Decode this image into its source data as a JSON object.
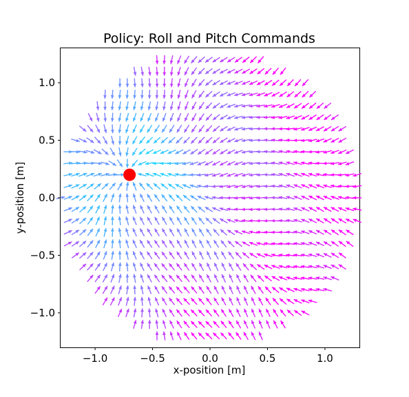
{
  "chart_data": {
    "type": "quiver",
    "title": "Policy: Roll and Pitch Commands",
    "xlabel": "x-position [m]",
    "ylabel": "y-position [m]",
    "xlim": [
      -1.3,
      1.3
    ],
    "ylim": [
      -1.3,
      1.3
    ],
    "xticks": [
      -1.0,
      -0.5,
      0.0,
      0.5,
      1.0
    ],
    "xtick_labels": [
      "−1.0",
      "−0.5",
      "0.0",
      "0.5",
      "1.0"
    ],
    "yticks": [
      -1.0,
      -0.5,
      0.0,
      0.5,
      1.0
    ],
    "ytick_labels": [
      "−1.0",
      "−0.5",
      "0.0",
      "0.5",
      "1.0"
    ],
    "grid": false,
    "colormap": "cool",
    "colormap_low": "#00ffff",
    "colormap_high": "#ff00ff",
    "target": {
      "x": -0.7,
      "y": 0.2,
      "color": "#ff0000"
    },
    "field": {
      "x_start": -1.3,
      "x_end": 1.3,
      "x_step": 0.0645,
      "y_start": -1.3,
      "y_end": 1.3,
      "y_step": 0.1,
      "radius": 1.3,
      "description": "arrows point toward the target; hue shifts from cyan near the target to magenta far away"
    }
  }
}
